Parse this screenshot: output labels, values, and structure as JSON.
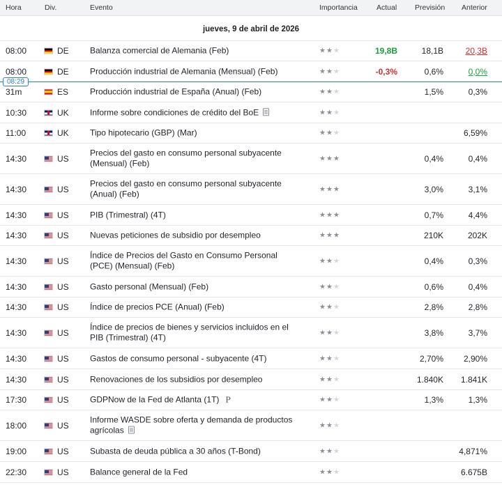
{
  "header": {
    "hora": "Hora",
    "div": "Div.",
    "evento": "Evento",
    "importancia": "Importancia",
    "actual": "Actual",
    "prevision": "Previsión",
    "anterior": "Anterior"
  },
  "date_label": "jueves, 9 de abril de 2026",
  "now_badge": "08:29",
  "colors": {
    "accent": "#2a7de1",
    "positive": "#1b9e3e",
    "negative": "#d32f2f"
  },
  "events": [
    {
      "time": "08:00",
      "flag": "de",
      "currency": "DE",
      "event": "Balanza comercial de Alemania (Feb)",
      "stars": 2,
      "actual": "19,8B",
      "actual_color": "green",
      "forecast": "18,1B",
      "previous": "20,3B",
      "previous_style": "red-underline"
    },
    {
      "time": "08:00",
      "flag": "de",
      "currency": "DE",
      "event": "Producción industrial de Alemania (Mensual) (Feb)",
      "stars": 2,
      "actual": "-0,3%",
      "actual_color": "red",
      "forecast": "0,6%",
      "previous": "0,0%",
      "previous_style": "green-underline"
    },
    {
      "time": "31m",
      "flag": "es",
      "currency": "ES",
      "event": "Producción industrial de España (Anual) (Feb)",
      "stars": 2,
      "actual": "",
      "forecast": "1,5%",
      "previous": "0,3%"
    },
    {
      "time": "10:30",
      "flag": "uk",
      "currency": "UK",
      "event": "Informe sobre condiciones de crédito del BoE",
      "icon": "document-icon",
      "stars": 2,
      "actual": "",
      "forecast": "",
      "previous": ""
    },
    {
      "time": "11:00",
      "flag": "uk",
      "currency": "UK",
      "event": "Tipo hipotecario (GBP) (Mar)",
      "stars": 2,
      "actual": "",
      "forecast": "",
      "previous": "6,59%"
    },
    {
      "time": "14:30",
      "flag": "us",
      "currency": "US",
      "event": "Precios del gasto en consumo personal subyacente (Mensual) (Feb)",
      "stars": 3,
      "actual": "",
      "forecast": "0,4%",
      "previous": "0,4%"
    },
    {
      "time": "14:30",
      "flag": "us",
      "currency": "US",
      "event": "Precios del gasto en consumo personal subyacente (Anual) (Feb)",
      "stars": 3,
      "actual": "",
      "forecast": "3,0%",
      "previous": "3,1%"
    },
    {
      "time": "14:30",
      "flag": "us",
      "currency": "US",
      "event": "PIB (Trimestral) (4T)",
      "stars": 3,
      "actual": "",
      "forecast": "0,7%",
      "previous": "4,4%"
    },
    {
      "time": "14:30",
      "flag": "us",
      "currency": "US",
      "event": "Nuevas peticiones de subsidio por desempleo",
      "stars": 3,
      "actual": "",
      "forecast": "210K",
      "previous": "202K"
    },
    {
      "time": "14:30",
      "flag": "us",
      "currency": "US",
      "event": "Índice de Precios del Gasto en Consumo Personal (PCE) (Mensual) (Feb)",
      "stars": 2,
      "actual": "",
      "forecast": "0,4%",
      "previous": "0,3%"
    },
    {
      "time": "14:30",
      "flag": "us",
      "currency": "US",
      "event": "Gasto personal (Mensual) (Feb)",
      "stars": 2,
      "actual": "",
      "forecast": "0,6%",
      "previous": "0,4%"
    },
    {
      "time": "14:30",
      "flag": "us",
      "currency": "US",
      "event": "Índice de precios PCE (Anual) (Feb)",
      "stars": 2,
      "actual": "",
      "forecast": "2,8%",
      "previous": "2,8%"
    },
    {
      "time": "14:30",
      "flag": "us",
      "currency": "US",
      "event": "Índice de precios de bienes y servicios incluidos en el PIB (Trimestral) (4T)",
      "stars": 2,
      "actual": "",
      "forecast": "3,8%",
      "previous": "3,7%"
    },
    {
      "time": "14:30",
      "flag": "us",
      "currency": "US",
      "event": "Gastos de consumo personal - subyacente (4T)",
      "stars": 2,
      "actual": "",
      "forecast": "2,70%",
      "previous": "2,90%"
    },
    {
      "time": "14:30",
      "flag": "us",
      "currency": "US",
      "event": "Renovaciones de los subsidios por desempleo",
      "stars": 2,
      "actual": "",
      "forecast": "1.840K",
      "previous": "1.841K"
    },
    {
      "time": "17:30",
      "flag": "us",
      "currency": "US",
      "event": "GDPNow de la Fed de Atlanta (1T)",
      "icon": "p-icon",
      "icon_text": "P",
      "stars": 2,
      "actual": "",
      "forecast": "1,3%",
      "previous": "1,3%"
    },
    {
      "time": "18:00",
      "flag": "us",
      "currency": "US",
      "event": "Informe WASDE sobre oferta y demanda de productos agrícolas",
      "icon": "document-icon",
      "stars": 2,
      "actual": "",
      "forecast": "",
      "previous": ""
    },
    {
      "time": "19:00",
      "flag": "us",
      "currency": "US",
      "event": "Subasta de deuda pública a 30 años (T-Bond)",
      "stars": 2,
      "actual": "",
      "forecast": "",
      "previous": "4,871%"
    },
    {
      "time": "22:30",
      "flag": "us",
      "currency": "US",
      "event": "Balance general de la Fed",
      "stars": 2,
      "actual": "",
      "forecast": "",
      "previous": "6.675B"
    }
  ]
}
